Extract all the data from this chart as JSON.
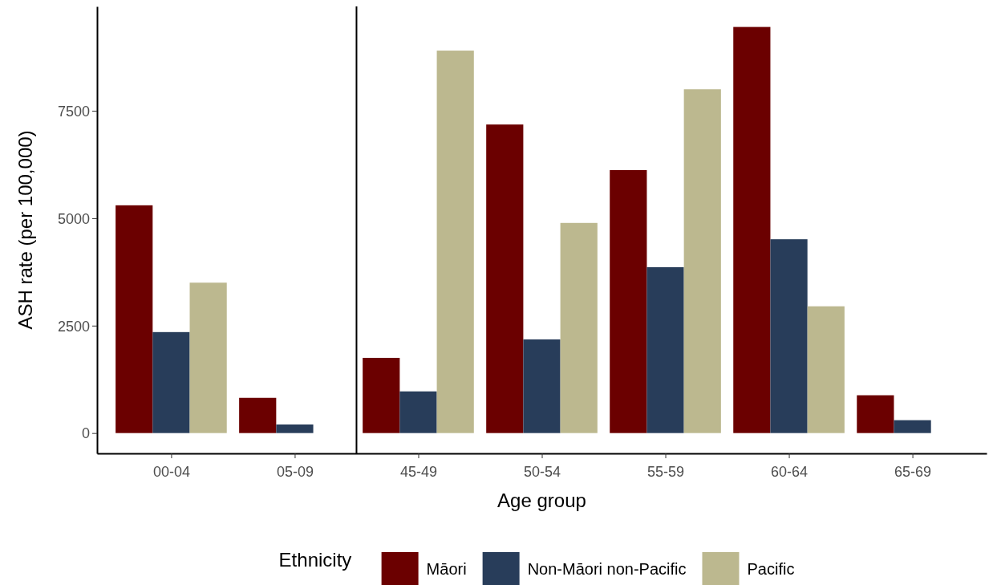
{
  "chart_data": {
    "type": "bar",
    "xlabel": "Age group",
    "ylabel": "ASH rate (per 100,000)",
    "legend_title": "Ethnicity",
    "categories": [
      "00-04",
      "05-09",
      "45-49",
      "50-54",
      "55-59",
      "60-64",
      "65-69"
    ],
    "series": [
      {
        "name": "Māori",
        "color": "#6b0000",
        "values": [
          5300,
          820,
          1750,
          7180,
          6120,
          9450,
          880
        ]
      },
      {
        "name": "Non-Māori non-Pacific",
        "color": "#283d5a",
        "values": [
          2350,
          200,
          970,
          2180,
          3860,
          4510,
          300
        ]
      },
      {
        "name": "Pacific",
        "color": "#bcb88f",
        "values": [
          3500,
          null,
          8900,
          4890,
          8000,
          2950,
          null
        ]
      }
    ],
    "ylim": [
      -473,
      9928
    ],
    "yticks": [
      0,
      2500,
      5000,
      7500
    ],
    "grid": false,
    "legend": "bottom"
  }
}
